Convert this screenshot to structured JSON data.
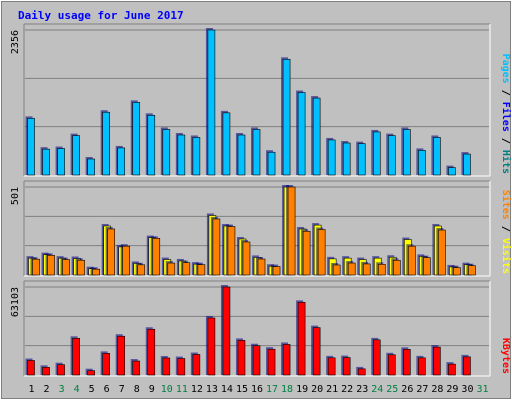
{
  "chart_data": {
    "type": "bar",
    "title": "Daily usage for June 2017",
    "days": [
      "1",
      "2",
      "3",
      "4",
      "5",
      "6",
      "7",
      "8",
      "9",
      "10",
      "11",
      "12",
      "13",
      "14",
      "15",
      "16",
      "17",
      "18",
      "19",
      "20",
      "21",
      "22",
      "23",
      "24",
      "25",
      "26",
      "27",
      "28",
      "29",
      "30",
      "31"
    ],
    "weekend_days": [
      3,
      4,
      10,
      11,
      17,
      18,
      24,
      25,
      31
    ],
    "panels": [
      {
        "id": "pages-files-hits",
        "ymax": 2356,
        "ymax_label": "2356",
        "legend": [
          {
            "label": "Pages",
            "color": "#00c0ff"
          },
          {
            "label": "Files",
            "color": "#0000ff"
          },
          {
            "label": "Hits",
            "color": "#008080"
          }
        ],
        "legend_separator": " / ",
        "series": [
          {
            "name": "Hits",
            "color": "#00c0ff",
            "values": [
              920,
              420,
              430,
              640,
              260,
              1020,
              440,
              1180,
              970,
              740,
              650,
              610,
              2356,
              1010,
              650,
              740,
              370,
              1880,
              1340,
              1250,
              570,
              520,
              510,
              700,
              640,
              740,
              400,
              610,
              120,
              340,
              null
            ]
          }
        ]
      },
      {
        "id": "sites-visits",
        "ymax": 501,
        "ymax_label": "501",
        "legend": [
          {
            "label": "Sites",
            "color": "#ff8000"
          },
          {
            "label": "Visits",
            "color": "#ffff00"
          }
        ],
        "legend_separator": " / ",
        "series": [
          {
            "name": "Visits",
            "color": "#ffff00",
            "values": [
              96,
              116,
              96,
              94,
              36,
              279,
              160,
              66,
              213,
              88,
              80,
              62,
              339,
              279,
              205,
              100,
              50,
              501,
              262,
              284,
              92,
              96,
              88,
              96,
              101,
              202,
              106,
              279,
              46,
              59,
              null
            ]
          },
          {
            "name": "Sites",
            "color": "#ff8000",
            "values": [
              90,
              112,
              88,
              84,
              33,
              262,
              164,
              58,
              209,
              68,
              70,
              59,
              319,
              276,
              188,
              91,
              48,
              501,
              249,
              259,
              57,
              68,
              63,
              61,
              84,
              164,
              99,
              256,
              42,
              53,
              null
            ]
          }
        ]
      },
      {
        "id": "kbytes",
        "ymax": 63103,
        "ymax_label": "63103",
        "legend": [
          {
            "label": "KBytes",
            "color": "#ff0000"
          }
        ],
        "legend_separator": "",
        "series": [
          {
            "name": "KBytes",
            "color": "#ff0000",
            "values": [
              10400,
              5500,
              7400,
              26300,
              3100,
              15500,
              27800,
              10000,
              32800,
              12200,
              11800,
              14700,
              40900,
              63103,
              24800,
              21000,
              18500,
              21900,
              52100,
              34000,
              12300,
              12500,
              4400,
              25200,
              14500,
              18400,
              12300,
              20000,
              7800,
              13000,
              null
            ]
          }
        ]
      }
    ],
    "colors": {
      "background": "#c0c0c0",
      "plot_bg": "#c0c0c0",
      "grid": "#808080",
      "border_dark": "#808080",
      "weekday_label": "#000000",
      "weekend_label": "#008040",
      "title_color": "#0000ff"
    }
  }
}
